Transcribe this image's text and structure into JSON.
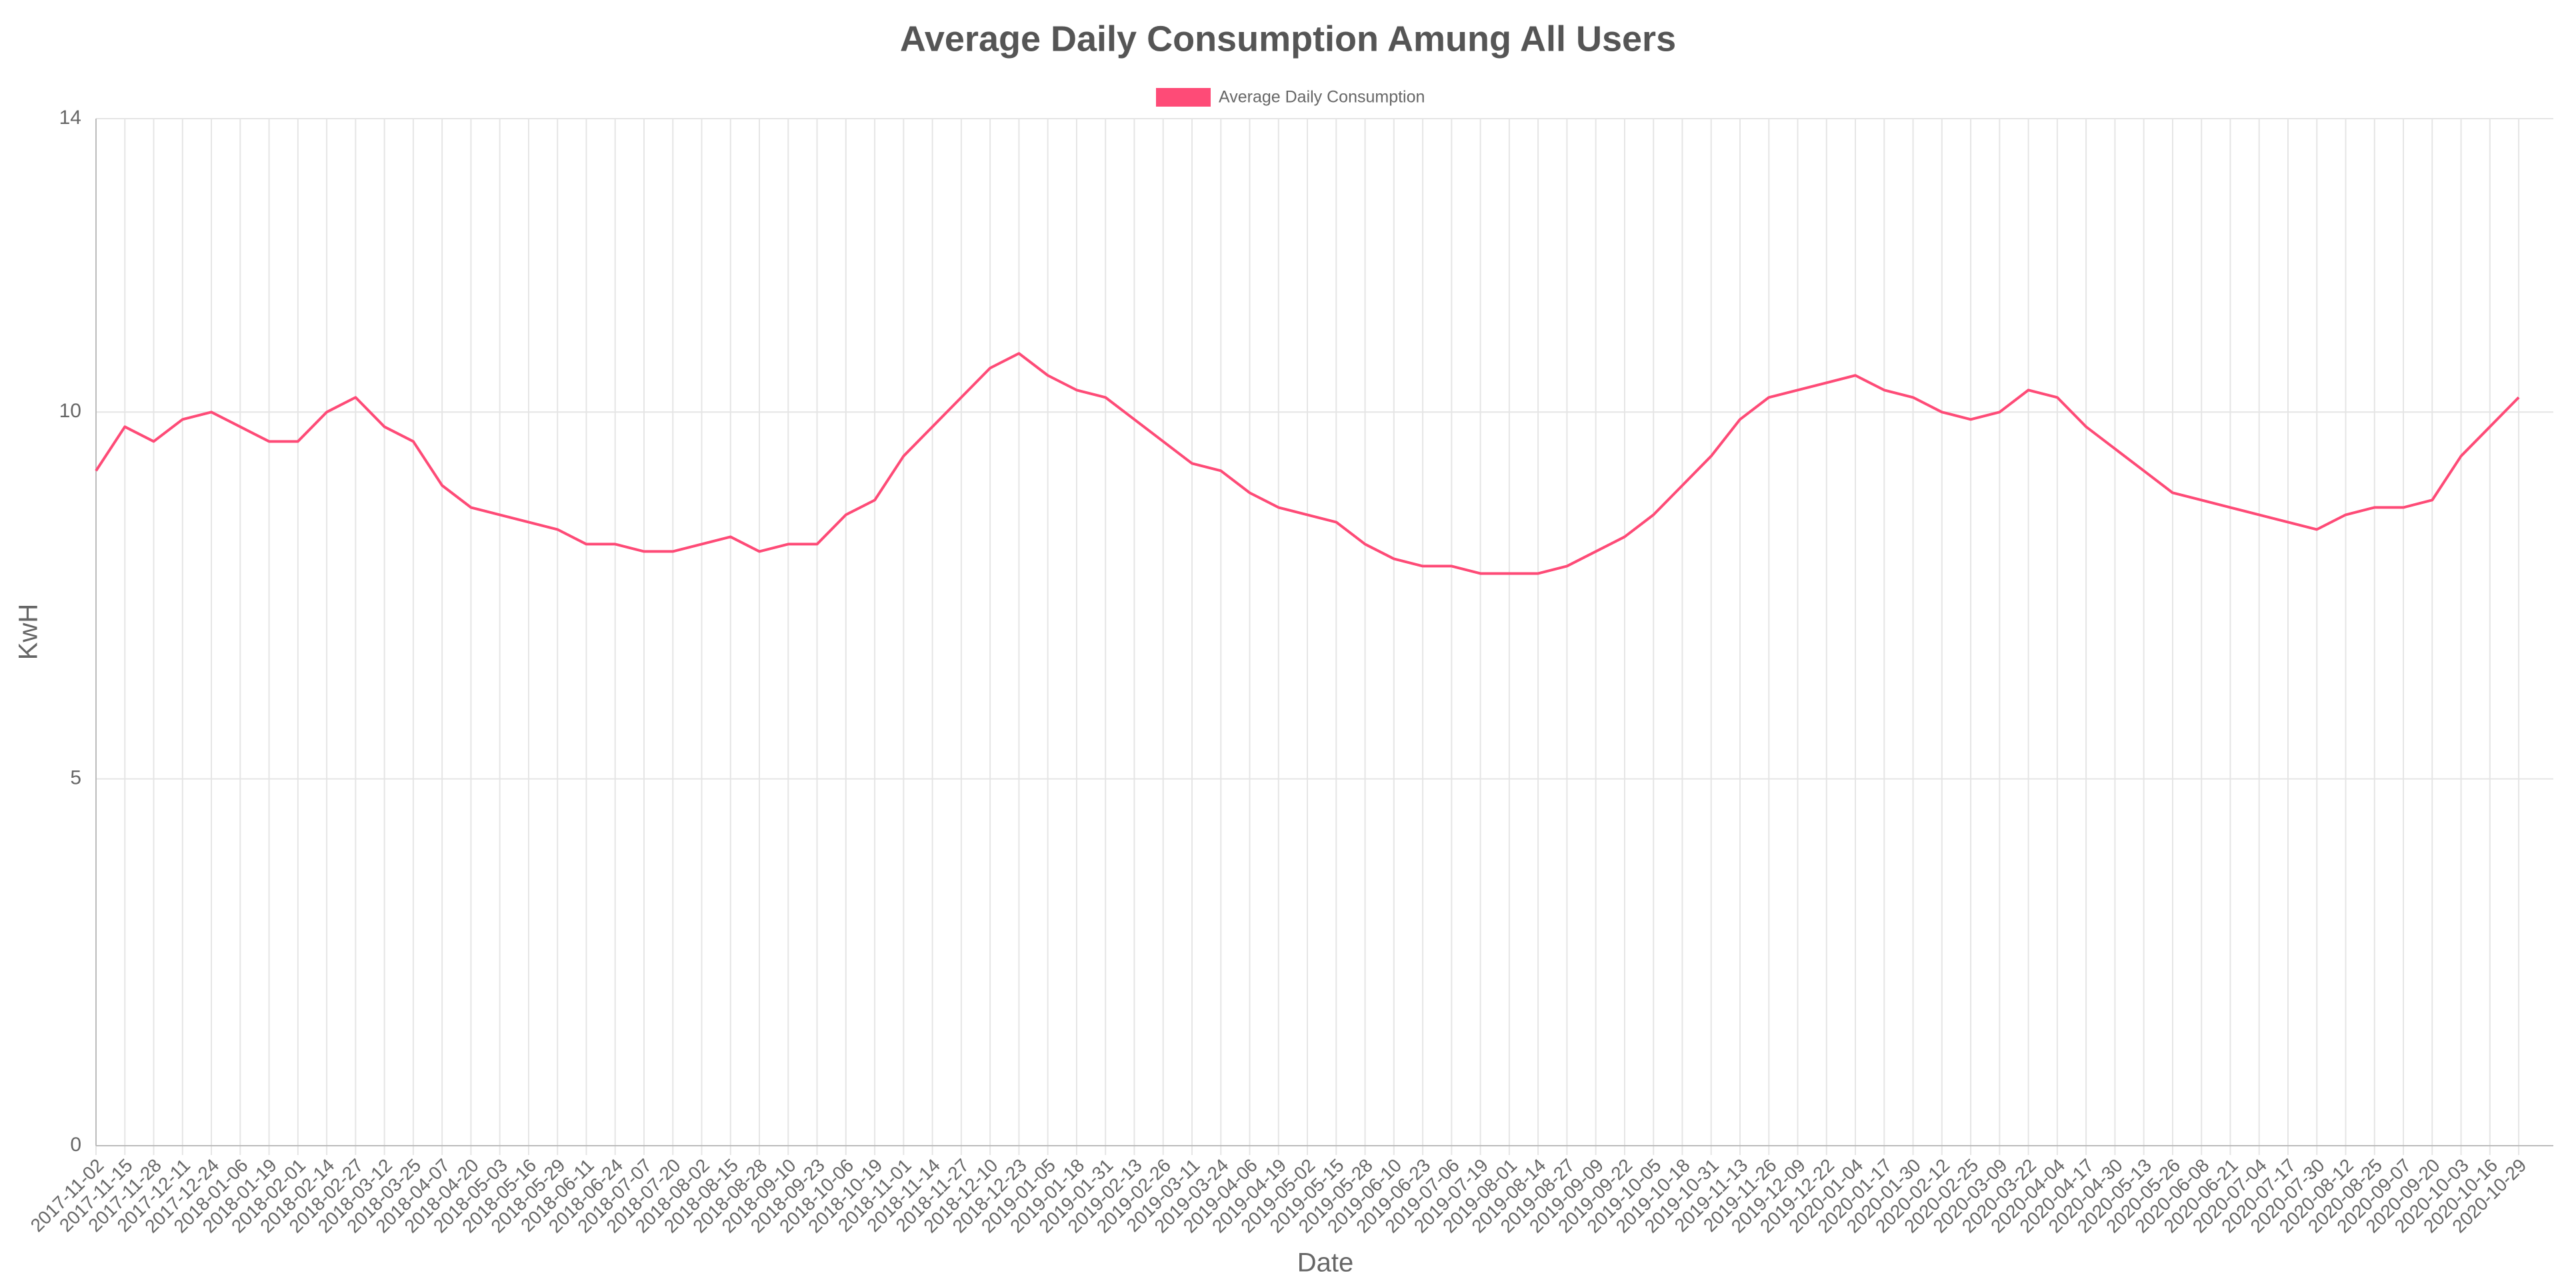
{
  "chart_data": {
    "type": "line",
    "title": "Average Daily Consumption Amung All Users",
    "x_label": "Date",
    "y_label": "KwH",
    "legend": "top",
    "grid": true,
    "x": [
      "2017-11-02",
      "2017-11-15",
      "2017-11-28",
      "2017-12-11",
      "2017-12-24",
      "2018-01-06",
      "2018-01-19",
      "2018-02-01",
      "2018-02-14",
      "2018-02-27",
      "2018-03-12",
      "2018-03-25",
      "2018-04-07",
      "2018-04-20",
      "2018-05-03",
      "2018-05-16",
      "2018-05-29",
      "2018-06-11",
      "2018-06-24",
      "2018-07-07",
      "2018-07-20",
      "2018-08-02",
      "2018-08-15",
      "2018-08-28",
      "2018-09-10",
      "2018-09-23",
      "2018-10-06",
      "2018-10-19",
      "2018-11-01",
      "2018-11-14",
      "2018-11-27",
      "2018-12-10",
      "2018-12-23",
      "2019-01-05",
      "2019-01-18",
      "2019-01-31",
      "2019-02-13",
      "2019-02-26",
      "2019-03-11",
      "2019-03-24",
      "2019-04-06",
      "2019-04-19",
      "2019-05-02",
      "2019-05-15",
      "2019-05-28",
      "2019-06-10",
      "2019-06-23",
      "2019-07-06",
      "2019-07-19",
      "2019-08-01",
      "2019-08-14",
      "2019-08-27",
      "2019-09-09",
      "2019-09-22",
      "2019-10-05",
      "2019-10-18",
      "2019-10-31",
      "2019-11-13",
      "2019-11-26",
      "2019-12-09",
      "2019-12-22",
      "2020-01-04",
      "2020-01-17",
      "2020-01-30",
      "2020-02-12",
      "2020-02-25",
      "2020-03-09",
      "2020-03-22",
      "2020-04-04",
      "2020-04-17",
      "2020-04-30",
      "2020-05-13",
      "2020-05-26",
      "2020-06-08",
      "2020-06-21",
      "2020-07-04",
      "2020-07-17",
      "2020-07-30",
      "2020-08-12",
      "2020-08-25",
      "2020-09-07",
      "2020-09-20",
      "2020-10-03",
      "2020-10-16",
      "2020-10-29"
    ],
    "series": [
      {
        "name": "Average Daily Consumption",
        "color": "#fe4b77",
        "values": [
          9.2,
          9.8,
          9.6,
          9.9,
          10.0,
          9.8,
          9.6,
          9.6,
          10.0,
          10.2,
          9.8,
          9.6,
          9.0,
          8.7,
          8.6,
          8.5,
          8.4,
          8.2,
          8.2,
          8.1,
          8.1,
          8.2,
          8.3,
          8.1,
          8.2,
          8.2,
          8.6,
          8.8,
          9.4,
          9.8,
          10.2,
          10.6,
          10.8,
          10.5,
          10.3,
          10.2,
          9.9,
          9.6,
          9.3,
          9.2,
          8.9,
          8.7,
          8.6,
          8.5,
          8.2,
          8.0,
          7.9,
          7.9,
          7.8,
          7.8,
          7.8,
          7.9,
          8.1,
          8.3,
          8.6,
          9.0,
          9.4,
          9.9,
          10.2,
          10.3,
          10.4,
          10.5,
          10.3,
          10.2,
          10.0,
          9.9,
          10.0,
          10.3,
          10.2,
          9.8,
          9.5,
          9.2,
          8.9,
          8.8,
          8.7,
          8.6,
          8.5,
          8.4,
          8.6,
          8.7,
          8.7,
          8.8,
          9.4,
          9.8,
          10.2
        ]
      }
    ],
    "ylim": [
      0,
      14
    ],
    "yticks": [
      0,
      5,
      10,
      14
    ]
  }
}
